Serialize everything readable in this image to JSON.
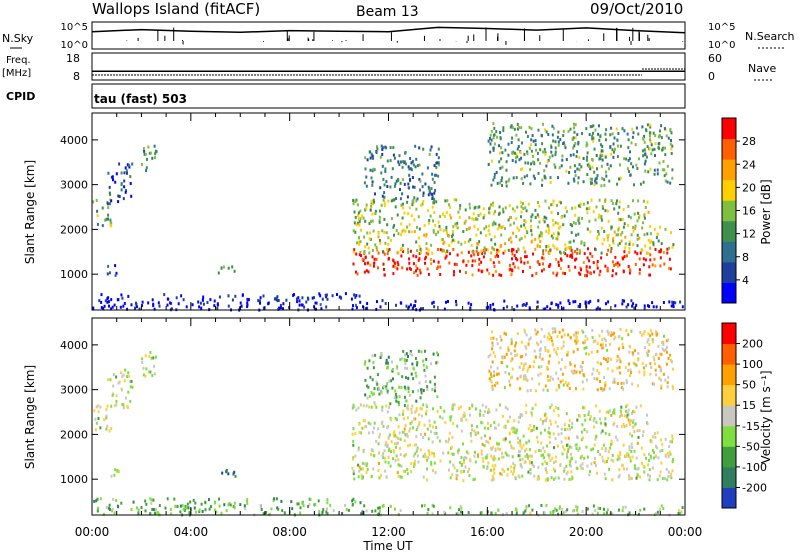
{
  "header": {
    "site": "Wallops Island (fitACF)",
    "beam": "Beam 13",
    "date": "09/Oct/2010"
  },
  "noise_panel": {
    "left_label": "N.Sky",
    "right_label": "N.Search",
    "left_ticks": [
      "10^5",
      "10^0"
    ],
    "right_ticks": [
      "10^5",
      "10^0"
    ]
  },
  "freq_panel": {
    "left_label_line1": "Freq.",
    "left_label_line2": "[MHz]",
    "right_label": "Nave",
    "left_ticks": [
      "18",
      "8"
    ],
    "right_ticks": [
      "60",
      "0"
    ],
    "cpid_label": "CPID",
    "cpid_text": "tau (fast) 503"
  },
  "power_panel": {
    "ylabel": "Slant Range [km]",
    "colorbar_label": "Power [dB]"
  },
  "velocity_panel": {
    "ylabel": "Slant Range [km]",
    "colorbar_label": "Velocity [m s⁻¹]"
  },
  "xlabel": "Time UT",
  "colors": {
    "power_scale": [
      "#0000ff",
      "#1f3f9f",
      "#2f6f8f",
      "#3f8f4f",
      "#7fbf3f",
      "#ffcf00",
      "#ff9f00",
      "#ff5f00",
      "#ff0000"
    ],
    "velocity_scale": [
      "#1f3fbf",
      "#2f7f5f",
      "#3f9f3f",
      "#7fdf3f",
      "#c8c8c0",
      "#ffcf3f",
      "#ff9f00",
      "#ff5f00",
      "#ff0000"
    ]
  },
  "chart_data": [
    {
      "type": "line",
      "name": "noise",
      "x": [
        0,
        2,
        4,
        6,
        8,
        10,
        12,
        14,
        16,
        18,
        20,
        22,
        24
      ],
      "series": [
        {
          "values": [
            3.2,
            3.6,
            3.3,
            3.1,
            3.4,
            3.3,
            3.2,
            4.0,
            3.8,
            3.5,
            3.9,
            3.4,
            3.0
          ]
        }
      ],
      "xlim": [
        0,
        24
      ],
      "ylim": [
        0,
        5
      ],
      "ylabel": "N.Sky",
      "yticks": [
        "10^0",
        "10^5"
      ]
    },
    {
      "type": "line",
      "name": "frequency",
      "x": [
        0,
        24
      ],
      "series": [
        {
          "values": [
            9,
            9
          ]
        }
      ],
      "xlim": [
        0,
        24
      ],
      "ylim": [
        8,
        18
      ],
      "yticks": [
        8,
        18
      ]
    },
    {
      "type": "heatmap",
      "name": "power",
      "xlim": [
        0,
        24
      ],
      "ylim": [
        200,
        4600
      ],
      "xticks": [
        "00:00",
        "04:00",
        "08:00",
        "12:00",
        "16:00",
        "20:00",
        "00:00"
      ],
      "xtick_values": [
        0,
        4,
        8,
        12,
        16,
        20,
        24
      ],
      "yticks": [
        1000,
        2000,
        3000,
        4000
      ],
      "ylabel": "Slant Range [km]",
      "colorbar_ticks": [
        4,
        8,
        12,
        16,
        20,
        24,
        28
      ],
      "colorbar_range": [
        0,
        32
      ],
      "colorbar_label": "Power [dB]",
      "bands": [
        {
          "t0": 0.0,
          "t1": 0.8,
          "r0": 2100,
          "r1": 2700,
          "level": 0.45
        },
        {
          "t0": 0.6,
          "t1": 1.6,
          "r0": 2600,
          "r1": 3500,
          "level": 0.2
        },
        {
          "t0": 1.9,
          "t1": 2.6,
          "r0": 3300,
          "r1": 3900,
          "level": 0.35
        },
        {
          "t0": 0.6,
          "t1": 1.1,
          "r0": 1000,
          "r1": 1300,
          "level": 0.15
        },
        {
          "t0": 5.0,
          "t1": 5.9,
          "r0": 1050,
          "r1": 1250,
          "level": 0.3
        },
        {
          "t0": 0.0,
          "t1": 11.0,
          "r0": 230,
          "r1": 600,
          "level": 0.05
        },
        {
          "t0": 10.5,
          "t1": 23.5,
          "r0": 1000,
          "r1": 1600,
          "level": 0.92
        },
        {
          "t0": 10.5,
          "t1": 23.5,
          "r0": 1500,
          "r1": 2100,
          "level": 0.55
        },
        {
          "t0": 10.5,
          "t1": 22.5,
          "r0": 2100,
          "r1": 2700,
          "level": 0.5
        },
        {
          "t0": 11.0,
          "t1": 14.0,
          "r0": 2700,
          "r1": 3900,
          "level": 0.3
        },
        {
          "t0": 16.0,
          "t1": 23.5,
          "r0": 3000,
          "r1": 4400,
          "level": 0.4
        },
        {
          "t0": 11.0,
          "t1": 24.0,
          "r0": 230,
          "r1": 450,
          "level": 0.05
        }
      ]
    },
    {
      "type": "heatmap",
      "name": "velocity",
      "xlim": [
        0,
        24
      ],
      "ylim": [
        200,
        4600
      ],
      "xticks": [
        "00:00",
        "04:00",
        "08:00",
        "12:00",
        "16:00",
        "20:00",
        "00:00"
      ],
      "xtick_values": [
        0,
        4,
        8,
        12,
        16,
        20,
        24
      ],
      "yticks": [
        1000,
        2000,
        3000,
        4000
      ],
      "ylabel": "Slant Range [km]",
      "colorbar_ticks": [
        200,
        100,
        50,
        15,
        -15,
        -50,
        -100,
        -200
      ],
      "colorbar_label": "Velocity [m s⁻¹]",
      "bands": [
        {
          "t0": 0.0,
          "t1": 0.8,
          "r0": 2100,
          "r1": 2700,
          "level": 0.48
        },
        {
          "t0": 0.6,
          "t1": 1.6,
          "r0": 2600,
          "r1": 3500,
          "level": 0.48
        },
        {
          "t0": 1.9,
          "t1": 2.6,
          "r0": 3300,
          "r1": 3900,
          "level": 0.48
        },
        {
          "t0": 0.6,
          "t1": 1.1,
          "r0": 1000,
          "r1": 1300,
          "level": 0.48
        },
        {
          "t0": 5.0,
          "t1": 5.9,
          "r0": 1050,
          "r1": 1250,
          "level": 0.25
        },
        {
          "t0": 0.0,
          "t1": 11.0,
          "r0": 230,
          "r1": 600,
          "level": 0.32
        },
        {
          "t0": 10.5,
          "t1": 23.5,
          "r0": 1000,
          "r1": 1600,
          "level": 0.5
        },
        {
          "t0": 10.5,
          "t1": 23.5,
          "r0": 1500,
          "r1": 2100,
          "level": 0.5
        },
        {
          "t0": 10.5,
          "t1": 22.5,
          "r0": 2100,
          "r1": 2700,
          "level": 0.5
        },
        {
          "t0": 11.0,
          "t1": 14.0,
          "r0": 2700,
          "r1": 3900,
          "level": 0.35
        },
        {
          "t0": 16.0,
          "t1": 23.5,
          "r0": 3000,
          "r1": 4400,
          "level": 0.6
        },
        {
          "t0": 11.0,
          "t1": 24.0,
          "r0": 230,
          "r1": 450,
          "level": 0.4
        }
      ]
    }
  ]
}
